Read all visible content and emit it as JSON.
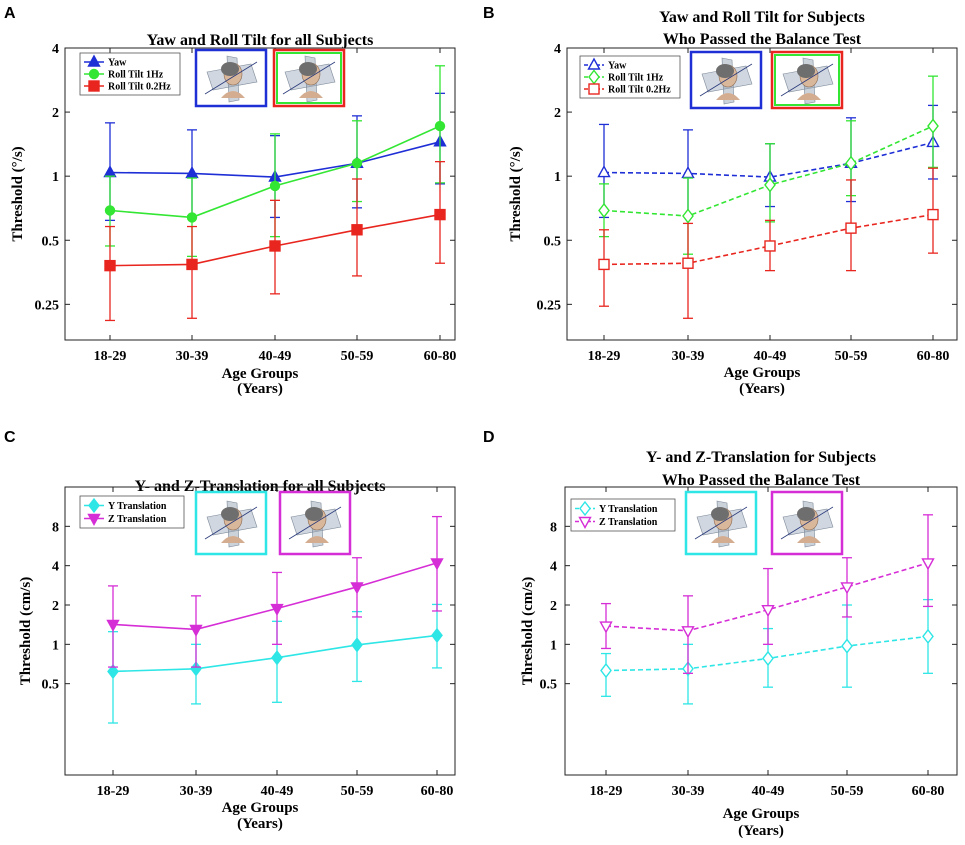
{
  "chart_data": [
    {
      "type": "line",
      "panel": "A",
      "title": [
        "Yaw and Roll Tilt for all Subjects"
      ],
      "xlabel": [
        "Age Groups",
        "(Years)"
      ],
      "ylabel": "Threshold (°/s)",
      "yscale": "log",
      "ylim": [
        0.17,
        4
      ],
      "yticks": [
        0.25,
        0.5,
        1,
        2,
        4
      ],
      "categories": [
        "18-29",
        "30-39",
        "40-49",
        "50-59",
        "60-80"
      ],
      "series": [
        {
          "name": "Yaw",
          "color": "#1f2fd6",
          "marker": "triangle-up",
          "filled": true,
          "dashed": false,
          "values": [
            1.04,
            1.03,
            0.99,
            1.15,
            1.45
          ],
          "err_low": [
            0.62,
            0.65,
            0.64,
            0.71,
            0.92
          ],
          "err_high": [
            1.78,
            1.65,
            1.55,
            1.92,
            2.45
          ]
        },
        {
          "name": "Roll Tilt 1Hz",
          "color": "#33e633",
          "marker": "circle",
          "filled": true,
          "dashed": false,
          "values": [
            0.69,
            0.64,
            0.9,
            1.15,
            1.72
          ],
          "err_low": [
            0.47,
            0.42,
            0.52,
            0.76,
            0.93
          ],
          "err_high": [
            1.0,
            0.98,
            1.58,
            1.82,
            3.3
          ]
        },
        {
          "name": "Roll Tilt 0.2Hz",
          "color": "#e8261f",
          "marker": "square",
          "filled": true,
          "dashed": false,
          "values": [
            0.38,
            0.385,
            0.47,
            0.56,
            0.66
          ],
          "err_low": [
            0.21,
            0.215,
            0.28,
            0.34,
            0.39
          ],
          "err_high": [
            0.58,
            0.58,
            0.77,
            0.97,
            1.17
          ]
        }
      ]
    },
    {
      "type": "line",
      "panel": "B",
      "title": [
        "Yaw and Roll Tilt for Subjects",
        "Who Passed the Balance Test"
      ],
      "xlabel": [
        "Age Groups",
        "(Years)"
      ],
      "ylabel": "Threshold (°/s)",
      "yscale": "log",
      "ylim": [
        0.17,
        4
      ],
      "yticks": [
        0.25,
        0.5,
        1,
        2,
        4
      ],
      "categories": [
        "18-29",
        "30-39",
        "40-49",
        "50-59",
        "60-80"
      ],
      "series": [
        {
          "name": "Yaw",
          "color": "#1f2fd6",
          "marker": "triangle-up",
          "filled": false,
          "dashed": true,
          "values": [
            1.04,
            1.03,
            0.99,
            1.15,
            1.44
          ],
          "err_low": [
            0.64,
            0.65,
            0.72,
            0.76,
            0.97
          ],
          "err_high": [
            1.75,
            1.65,
            1.42,
            1.88,
            2.15
          ]
        },
        {
          "name": "Roll Tilt 1Hz",
          "color": "#33e633",
          "marker": "diamond",
          "filled": false,
          "dashed": true,
          "values": [
            0.69,
            0.65,
            0.91,
            1.15,
            1.72
          ],
          "err_low": [
            0.52,
            0.43,
            0.61,
            0.81,
            1.1
          ],
          "err_high": [
            0.92,
            0.98,
            1.42,
            1.82,
            2.95
          ]
        },
        {
          "name": "Roll Tilt 0.2Hz",
          "color": "#e8261f",
          "marker": "square",
          "filled": false,
          "dashed": true,
          "values": [
            0.385,
            0.39,
            0.47,
            0.57,
            0.66
          ],
          "err_low": [
            0.245,
            0.215,
            0.36,
            0.36,
            0.435
          ],
          "err_high": [
            0.56,
            0.6,
            0.62,
            0.96,
            1.09
          ]
        }
      ]
    },
    {
      "type": "line",
      "panel": "C",
      "title": [
        "Y- and Z-Translation for all Subjects"
      ],
      "xlabel": [
        "Age Groups",
        "(Years)"
      ],
      "ylabel": "Threshold (cm/s)",
      "yscale": "log",
      "ylim": [
        0.1,
        16
      ],
      "yticks": [
        0.5,
        1,
        2,
        4,
        8
      ],
      "categories": [
        "18-29",
        "30-39",
        "40-49",
        "50-59",
        "60-80"
      ],
      "series": [
        {
          "name": "Y Translation",
          "color": "#2ee6e6",
          "marker": "diamond",
          "filled": true,
          "dashed": false,
          "values": [
            0.62,
            0.65,
            0.79,
            0.99,
            1.17
          ],
          "err_low": [
            0.25,
            0.35,
            0.36,
            0.52,
            0.66
          ],
          "err_high": [
            1.25,
            1.0,
            1.5,
            1.78,
            2.02
          ]
        },
        {
          "name": "Z Translation",
          "color": "#d62ed6",
          "marker": "triangle-down",
          "filled": true,
          "dashed": false,
          "values": [
            1.42,
            1.3,
            1.88,
            2.75,
            4.2
          ],
          "err_low": [
            0.67,
            0.67,
            1.0,
            1.62,
            1.8
          ],
          "err_high": [
            2.8,
            2.35,
            3.55,
            4.6,
            9.5
          ]
        }
      ]
    },
    {
      "type": "line",
      "panel": "D",
      "title": [
        "Y- and Z-Translation for Subjects",
        "Who Passed the Balance Test"
      ],
      "xlabel": [
        "Age Groups",
        "(Years)"
      ],
      "ylabel": "Threshold (cm/s)",
      "yscale": "log",
      "ylim": [
        0.1,
        16
      ],
      "yticks": [
        0.5,
        1,
        2,
        4,
        8
      ],
      "categories": [
        "18-29",
        "30-39",
        "40-49",
        "50-59",
        "60-80"
      ],
      "series": [
        {
          "name": "Y Translation",
          "color": "#2ee6e6",
          "marker": "diamond",
          "filled": false,
          "dashed": true,
          "values": [
            0.63,
            0.65,
            0.78,
            0.97,
            1.15
          ],
          "err_low": [
            0.4,
            0.35,
            0.47,
            0.47,
            0.6
          ],
          "err_high": [
            0.85,
            1.0,
            1.32,
            2.0,
            2.2
          ]
        },
        {
          "name": "Z Translation",
          "color": "#d62ed6",
          "marker": "triangle-down",
          "filled": false,
          "dashed": true,
          "values": [
            1.38,
            1.27,
            1.84,
            2.75,
            4.2
          ],
          "err_low": [
            0.93,
            0.6,
            1.0,
            1.62,
            1.95
          ],
          "err_high": [
            2.05,
            2.35,
            3.8,
            4.6,
            9.8
          ]
        }
      ]
    }
  ]
}
